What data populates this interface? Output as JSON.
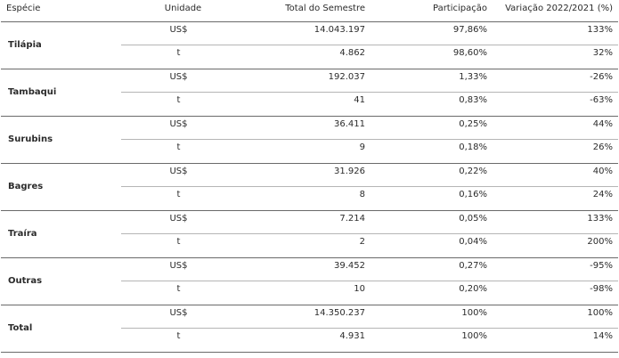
{
  "headers": {
    "especie": "Espécie",
    "unidade": "Unidade",
    "total": "Total do Semestre",
    "participacao": "Participação",
    "variacao": "Variação 2022/2021 (%)"
  },
  "rows": [
    {
      "especie": "Tilápia",
      "lines": [
        {
          "unidade": "US$",
          "total": "14.043.197",
          "participacao": "97,86%",
          "variacao": "133%"
        },
        {
          "unidade": "t",
          "total": "4.862",
          "participacao": "98,60%",
          "variacao": "32%"
        }
      ]
    },
    {
      "especie": "Tambaqui",
      "lines": [
        {
          "unidade": "US$",
          "total": "192.037",
          "participacao": "1,33%",
          "variacao": "-26%"
        },
        {
          "unidade": "t",
          "total": "41",
          "participacao": "0,83%",
          "variacao": "-63%"
        }
      ]
    },
    {
      "especie": "Surubins",
      "lines": [
        {
          "unidade": "US$",
          "total": "36.411",
          "participacao": "0,25%",
          "variacao": "44%"
        },
        {
          "unidade": "t",
          "total": "9",
          "participacao": "0,18%",
          "variacao": "26%"
        }
      ]
    },
    {
      "especie": "Bagres",
      "lines": [
        {
          "unidade": "US$",
          "total": "31.926",
          "participacao": "0,22%",
          "variacao": "40%"
        },
        {
          "unidade": "t",
          "total": "8",
          "participacao": "0,16%",
          "variacao": "24%"
        }
      ]
    },
    {
      "especie": "Traíra",
      "lines": [
        {
          "unidade": "US$",
          "total": "7.214",
          "participacao": "0,05%",
          "variacao": "133%"
        },
        {
          "unidade": "t",
          "total": "2",
          "participacao": "0,04%",
          "variacao": "200%"
        }
      ]
    },
    {
      "especie": "Outras",
      "lines": [
        {
          "unidade": "US$",
          "total": "39.452",
          "participacao": "0,27%",
          "variacao": "-95%"
        },
        {
          "unidade": "t",
          "total": "10",
          "participacao": "0,20%",
          "variacao": "-98%"
        }
      ]
    },
    {
      "especie": "Total",
      "lines": [
        {
          "unidade": "US$",
          "total": "14.350.237",
          "participacao": "100%",
          "variacao": "100%"
        },
        {
          "unidade": "t",
          "total": "4.931",
          "participacao": "100%",
          "variacao": "14%"
        }
      ]
    }
  ]
}
